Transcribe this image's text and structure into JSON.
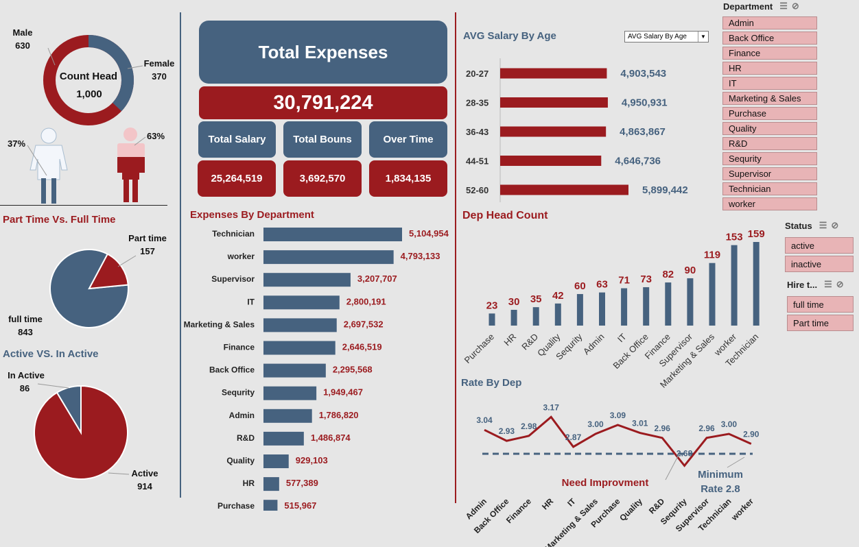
{
  "colors": {
    "blue": "#46627f",
    "red": "#9b1b1f",
    "bg": "#e6e6e6",
    "slicer": "#e8b4b6",
    "dash": "#46627f"
  },
  "headcount": {
    "title": "Count Head",
    "total": "1,000",
    "male_label": "Male",
    "male_value": "630",
    "female_label": "Female",
    "female_value": "370",
    "female_pct": "37%",
    "male_pct": "63%"
  },
  "part_full": {
    "title": "Part Time Vs. Full Time",
    "part_label": "Part time",
    "part_value": "157",
    "full_label": "full time",
    "full_value": "843"
  },
  "active": {
    "title": "Active VS. In Active",
    "inactive_label": "In Active",
    "inactive_value": "86",
    "active_label": "Active",
    "active_value": "914"
  },
  "expenses": {
    "title": "Total Expenses",
    "total": "30,791,224",
    "salary_label": "Total Salary",
    "salary_value": "25,264,519",
    "bonus_label": "Total Bouns",
    "bonus_value": "3,692,570",
    "overtime_label": "Over Time",
    "overtime_value": "1,834,135"
  },
  "slicers": {
    "department": {
      "title": "Department",
      "items": [
        "Admin",
        "Back Office",
        "Finance",
        "HR",
        "IT",
        "Marketing & Sales",
        "Purchase",
        "Quality",
        "R&D",
        "Sequrity",
        "Supervisor",
        "Technician",
        "worker"
      ]
    },
    "status": {
      "title": "Status",
      "items": [
        "active",
        "inactive"
      ]
    },
    "hire": {
      "title": "Hire t...",
      "items": [
        "full time",
        "Part time"
      ]
    }
  },
  "chart_data": [
    {
      "type": "pie",
      "subtype": "donut",
      "title": "Count Head",
      "labels": [
        "Male",
        "Female"
      ],
      "values": [
        630,
        370
      ],
      "colors": [
        "#9b1b1f",
        "#46627f"
      ]
    },
    {
      "type": "pie",
      "title": "Part Time Vs. Full Time",
      "labels": [
        "Part time",
        "full time"
      ],
      "values": [
        157,
        843
      ],
      "colors": [
        "#9b1b1f",
        "#46627f"
      ]
    },
    {
      "type": "pie",
      "title": "Active VS. In Active",
      "labels": [
        "In Active",
        "Active"
      ],
      "values": [
        86,
        914
      ],
      "colors": [
        "#46627f",
        "#9b1b1f"
      ]
    },
    {
      "type": "bar",
      "orientation": "horizontal",
      "title": "AVG Salary By Age",
      "dropdown": "AVG Salary By Age",
      "categories": [
        "20-27",
        "28-35",
        "36-43",
        "44-51",
        "52-60"
      ],
      "values": [
        4903543,
        4950931,
        4863867,
        4646736,
        5899442
      ],
      "labels": [
        "4,903,543",
        "4,950,931",
        "4,863,867",
        "4,646,736",
        "5,899,442"
      ]
    },
    {
      "type": "bar",
      "orientation": "horizontal",
      "title": "Expenses By Department",
      "categories": [
        "Technician",
        "worker",
        "Supervisor",
        "IT",
        "Marketing & Sales",
        "Finance",
        "Back Office",
        "Sequrity",
        "Admin",
        "R&D",
        "Quality",
        "HR",
        "Purchase"
      ],
      "values": [
        5104954,
        4793133,
        3207707,
        2800191,
        2697532,
        2646519,
        2295568,
        1949467,
        1786820,
        1486874,
        929103,
        577389,
        515967
      ],
      "labels": [
        "5,104,954",
        "4,793,133",
        "3,207,707",
        "2,800,191",
        "2,697,532",
        "2,646,519",
        "2,295,568",
        "1,949,467",
        "1,786,820",
        "1,486,874",
        "929,103",
        "577,389",
        "515,967"
      ]
    },
    {
      "type": "bar",
      "title": "Dep Head Count",
      "categories": [
        "Purchase",
        "HR",
        "R&D",
        "Quality",
        "Sequrity",
        "Admin",
        "IT",
        "Back Office",
        "Finance",
        "Supervisor",
        "Marketing & Sales",
        "worker",
        "Technician"
      ],
      "values": [
        23,
        30,
        35,
        42,
        60,
        63,
        71,
        73,
        82,
        90,
        119,
        153,
        159
      ]
    },
    {
      "type": "line",
      "title": "Rate By Dep",
      "categories": [
        "Admin",
        "Back Office",
        "Finance",
        "HR",
        "IT",
        "Marketing & Sales",
        "Purchase",
        "Quality",
        "R&D",
        "Sequrity",
        "Supervisor",
        "Technician",
        "worker"
      ],
      "values": [
        3.04,
        2.93,
        2.98,
        3.17,
        2.87,
        3.0,
        3.09,
        3.01,
        2.96,
        2.68,
        2.96,
        3.0,
        2.9
      ],
      "labels": [
        "3.04",
        "2.93",
        "2.98",
        "3.17",
        "2.87",
        "3.00",
        "3.09",
        "3.01",
        "2.96",
        "2.68",
        "2.96",
        "3.00",
        "2.90"
      ],
      "threshold": 2.8,
      "annotations": {
        "need": "Need Improvment",
        "min1": "Minimum",
        "min2": "Rate 2.8"
      }
    }
  ]
}
